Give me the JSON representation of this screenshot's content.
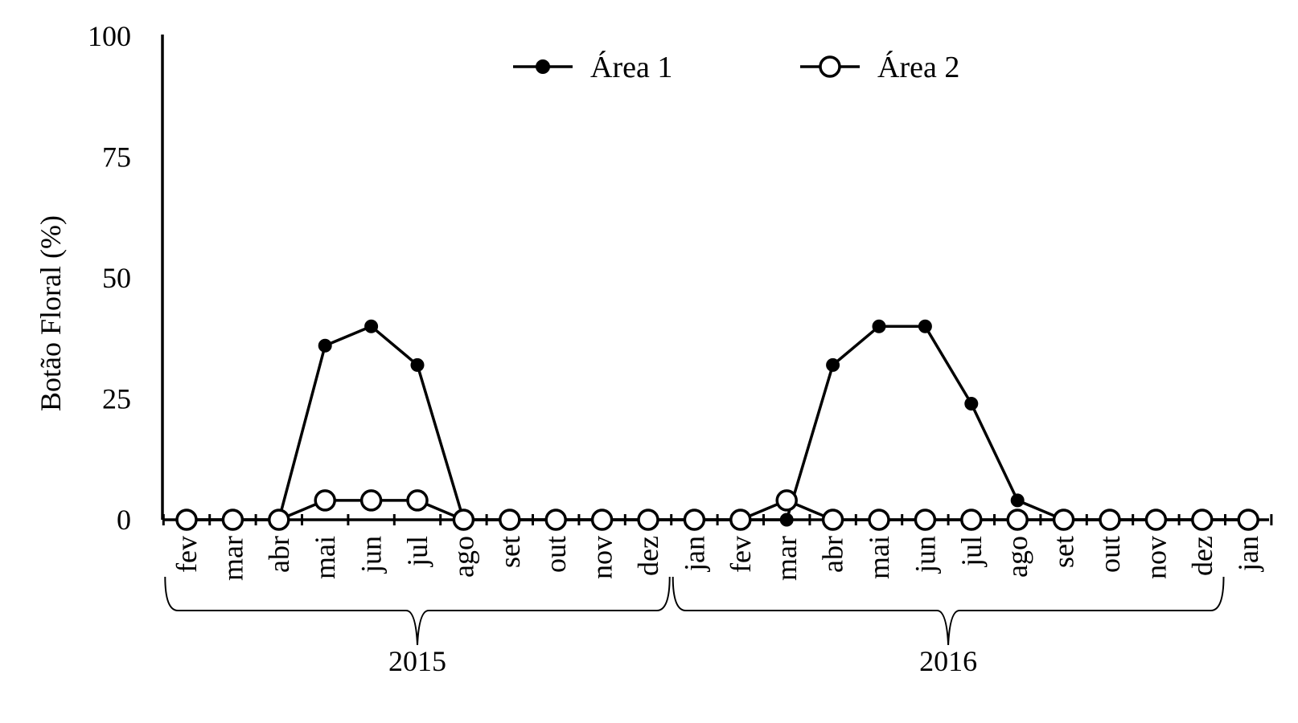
{
  "chart_data": {
    "type": "line",
    "title": "",
    "xlabel": "",
    "ylabel": "Botão Floral (%)",
    "ylim": [
      0,
      100
    ],
    "yticks": [
      "0",
      "25",
      "50",
      "75",
      "100"
    ],
    "categories": [
      "fev",
      "mar",
      "abr",
      "mai",
      "jun",
      "jul",
      "ago",
      "set",
      "out",
      "nov",
      "dez",
      "jan",
      "fev",
      "mar",
      "abr",
      "mai",
      "jun",
      "jul",
      "ago",
      "set",
      "out",
      "nov",
      "dez",
      "jan"
    ],
    "year_groups": [
      {
        "label": "2015",
        "from": 0,
        "to": 10
      },
      {
        "label": "2016",
        "from": 11,
        "to": 22
      }
    ],
    "legend_position": "top",
    "grid": false,
    "series": [
      {
        "name": "Área 1",
        "marker": "filled",
        "values": [
          0,
          0,
          0,
          36,
          40,
          32,
          0,
          0,
          0,
          0,
          0,
          0,
          0,
          0,
          32,
          40,
          40,
          24,
          4,
          0,
          0,
          0,
          0,
          0
        ]
      },
      {
        "name": "Área 2",
        "marker": "open",
        "values": [
          0,
          0,
          0,
          4,
          4,
          4,
          0,
          0,
          0,
          0,
          0,
          0,
          0,
          4,
          0,
          0,
          0,
          0,
          0,
          0,
          0,
          0,
          0,
          0
        ]
      }
    ]
  }
}
